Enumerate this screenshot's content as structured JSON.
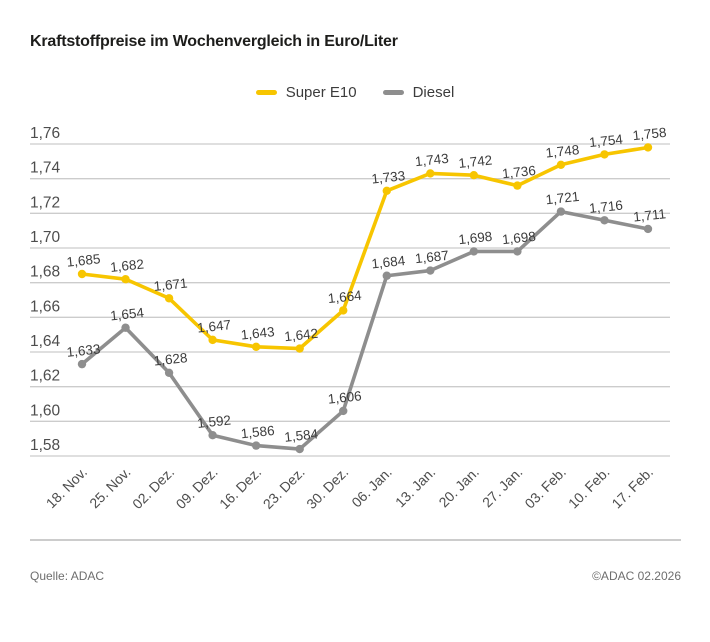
{
  "header": {
    "title": "Kraftstoffpreise im Wochenvergleich in Euro/Liter"
  },
  "chart_data": {
    "type": "line",
    "title": "Kraftstoffpreise im Wochenvergleich in Euro/Liter",
    "categories": [
      "18. Nov.",
      "25. Nov.",
      "02. Dez.",
      "09. Dez.",
      "16. Dez.",
      "23. Dez.",
      "30. Dez.",
      "06. Jan.",
      "13. Jan.",
      "20. Jan.",
      "27. Jan.",
      "03. Feb.",
      "10. Feb.",
      "17. Feb."
    ],
    "series": [
      {
        "name": "Super E10",
        "color": "#F7C500",
        "values": [
          1.685,
          1.682,
          1.671,
          1.647,
          1.643,
          1.642,
          1.664,
          1.733,
          1.743,
          1.742,
          1.736,
          1.748,
          1.754,
          1.758
        ]
      },
      {
        "name": "Diesel",
        "color": "#8E8E8E",
        "values": [
          1.633,
          1.654,
          1.628,
          1.592,
          1.586,
          1.584,
          1.606,
          1.684,
          1.687,
          1.698,
          1.698,
          1.721,
          1.716,
          1.711
        ]
      }
    ],
    "ylim": [
      1.58,
      1.76
    ],
    "ytick_step": 0.02,
    "yticks": [
      "1,58",
      "1,60",
      "1,62",
      "1,64",
      "1,66",
      "1,68",
      "1,70",
      "1,72",
      "1,74",
      "1,76"
    ],
    "decimal_separator": ",",
    "grid": "horizontal",
    "grid_color": "#CCCCCC",
    "axis_text_color": "#4d4d4d",
    "value_label_color": "#3c3c3c",
    "legend_position": "top",
    "xlabel": "",
    "ylabel": ""
  },
  "footer": {
    "source": "Quelle: ADAC",
    "copyright": "©ADAC 02.2026"
  }
}
